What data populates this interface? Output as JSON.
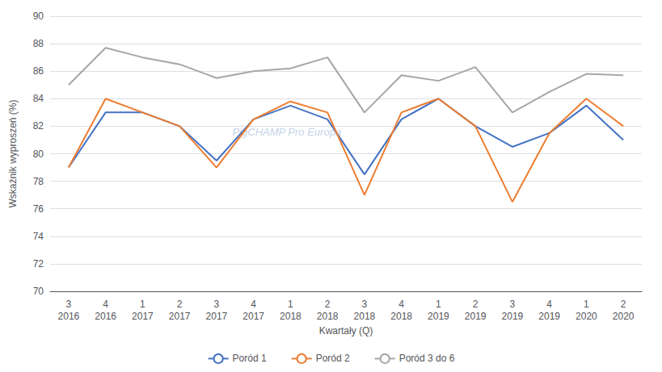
{
  "chart_data": {
    "type": "line",
    "xlabel": "Kwartały (Q)",
    "ylabel": "Wskaźnik wyproszeń (%)",
    "annotations": [
      "PigCHAMP Pro Europa"
    ],
    "categories": [
      "3\n2016",
      "4\n2016",
      "1\n2017",
      "2\n2017",
      "3\n2017",
      "4\n2017",
      "1\n2018",
      "2\n2018",
      "3\n2018",
      "4\n2018",
      "1\n2019",
      "2\n2019",
      "3\n2019",
      "4\n2019",
      "1\n2020",
      "2\n2020"
    ],
    "series": [
      {
        "name": "Poród 1",
        "color": "#4472C4",
        "values": [
          79.0,
          83.0,
          83.0,
          82.0,
          79.5,
          82.5,
          83.5,
          82.5,
          78.5,
          82.5,
          84.0,
          82.0,
          80.5,
          81.5,
          83.5,
          81.0
        ]
      },
      {
        "name": "Poród 2",
        "color": "#ED7D31",
        "values": [
          79.0,
          84.0,
          83.0,
          82.0,
          79.0,
          82.5,
          83.8,
          83.0,
          77.0,
          83.0,
          84.0,
          82.0,
          76.5,
          81.5,
          84.0,
          82.0
        ]
      },
      {
        "name": "Poród 3 do 6",
        "color": "#A6A6A6",
        "values": [
          85.0,
          87.7,
          87.0,
          86.5,
          85.5,
          86.0,
          86.2,
          87.0,
          83.0,
          85.7,
          85.3,
          86.3,
          83.0,
          84.5,
          85.8,
          85.7
        ]
      }
    ],
    "ylim": [
      70,
      90
    ],
    "yticks": [
      70,
      72,
      74,
      76,
      78,
      80,
      82,
      84,
      86,
      88,
      90
    ],
    "grid": true,
    "legend": "bottom"
  }
}
